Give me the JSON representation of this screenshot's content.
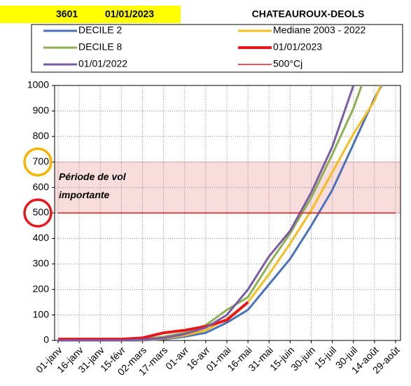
{
  "chart_data": {
    "type": "line",
    "station_code": "3601",
    "date": "01/01/2023",
    "title": "CHATEAUROUX-DEOLS",
    "categories": [
      "01-janv",
      "16-janv",
      "31-janv",
      "15-févr",
      "02-mars",
      "17-mars",
      "01-avr",
      "16-avr",
      "01-mai",
      "16-mai",
      "31-mai",
      "15-juin",
      "30-juin",
      "15-juil",
      "30-juil",
      "14-août",
      "29-août"
    ],
    "series": [
      {
        "name": "DECILE 2",
        "color": "#4a72b8",
        "values": [
          0,
          0,
          0,
          0,
          0,
          5,
          15,
          30,
          70,
          120,
          220,
          320,
          450,
          590,
          770,
          950,
          1100
        ]
      },
      {
        "name": "Mediane 2003 - 2022",
        "color": "#f5bd1e",
        "values": [
          0,
          0,
          0,
          0,
          2,
          8,
          20,
          40,
          85,
          150,
          260,
          380,
          510,
          660,
          810,
          940,
          1150
        ]
      },
      {
        "name": "DECILE 8",
        "color": "#8db152",
        "values": [
          0,
          0,
          0,
          0,
          5,
          15,
          30,
          60,
          120,
          170,
          300,
          420,
          560,
          730,
          910,
          1140,
          null
        ]
      },
      {
        "name": "01/01/2023",
        "color": "#e8161b",
        "values": [
          5,
          5,
          5,
          5,
          10,
          30,
          40,
          55,
          80,
          150,
          null,
          null,
          null,
          null,
          null,
          null,
          null
        ]
      },
      {
        "name": "01/01/2022",
        "color": "#7b5aa6",
        "values": [
          0,
          0,
          0,
          0,
          3,
          10,
          25,
          50,
          100,
          200,
          330,
          430,
          580,
          760,
          1000,
          null,
          null
        ]
      },
      {
        "name": "500°Cj",
        "color": "#e8161b",
        "values": [
          500,
          500,
          500,
          500,
          500,
          500,
          500,
          500,
          500,
          500,
          500,
          500,
          500,
          500,
          500,
          500,
          500
        ]
      }
    ],
    "ylim": [
      0,
      1000
    ],
    "yticks": [
      0,
      100,
      200,
      300,
      400,
      500,
      600,
      700,
      800,
      900,
      1000
    ],
    "grid": true,
    "band": {
      "from": 500,
      "to": 700,
      "label_lines": [
        "Période de vol",
        "importante"
      ]
    },
    "highlight_ticks": [
      {
        "value": 700,
        "color": "#f5b400"
      },
      {
        "value": 500,
        "color": "#e8161b"
      }
    ]
  }
}
